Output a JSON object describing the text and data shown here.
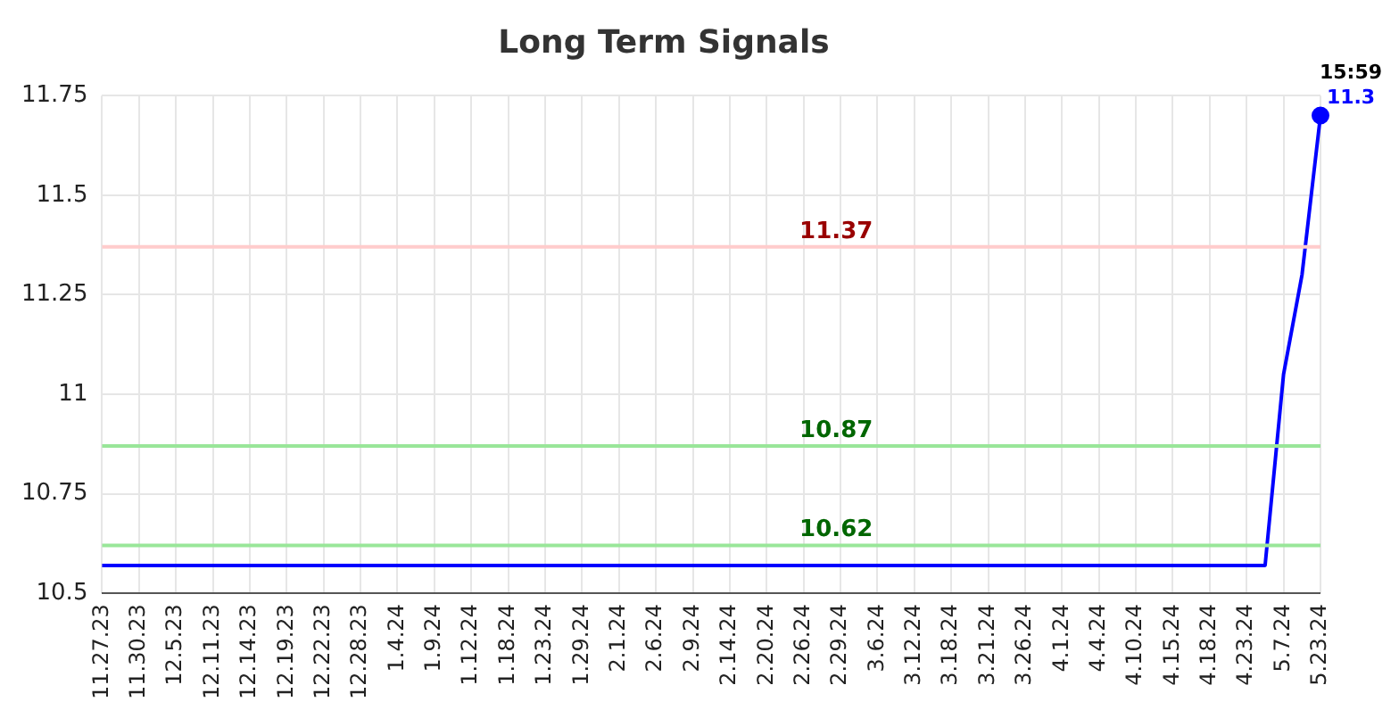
{
  "chart_data": {
    "type": "line",
    "title": "Long Term Signals",
    "categories": [
      "11.27.23",
      null,
      "11.30.23",
      null,
      "12.5.23",
      null,
      "12.11.23",
      null,
      "12.14.23",
      null,
      "12.19.23",
      null,
      "12.22.23",
      null,
      "12.28.23",
      null,
      "1.4.24",
      null,
      "1.9.24",
      null,
      "1.12.24",
      null,
      "1.18.24",
      null,
      "1.23.24",
      null,
      "1.29.24",
      null,
      "2.1.24",
      null,
      "2.6.24",
      null,
      "2.9.24",
      null,
      "2.14.24",
      null,
      "2.20.24",
      null,
      "2.26.24",
      null,
      "2.29.24",
      null,
      "3.6.24",
      null,
      "3.12.24",
      null,
      "3.18.24",
      null,
      "3.21.24",
      null,
      "3.26.24",
      null,
      "4.1.24",
      null,
      "4.4.24",
      null,
      "4.10.24",
      null,
      "4.15.24",
      null,
      "4.18.24",
      null,
      "4.23.24",
      null,
      "5.7.24",
      null,
      "5.23.24"
    ],
    "series": [
      {
        "color": "#0000ff",
        "values": [
          10.57,
          10.57,
          10.57,
          10.57,
          10.57,
          10.57,
          10.57,
          10.57,
          10.57,
          10.57,
          10.57,
          10.57,
          10.57,
          10.57,
          10.57,
          10.57,
          10.57,
          10.57,
          10.57,
          10.57,
          10.57,
          10.57,
          10.57,
          10.57,
          10.57,
          10.57,
          10.57,
          10.57,
          10.57,
          10.57,
          10.57,
          10.57,
          10.57,
          10.57,
          10.57,
          10.57,
          10.57,
          10.57,
          10.57,
          10.57,
          10.57,
          10.57,
          10.57,
          10.57,
          10.57,
          10.57,
          10.57,
          10.57,
          10.57,
          10.57,
          10.57,
          10.57,
          10.57,
          10.57,
          10.57,
          10.57,
          10.57,
          10.57,
          10.57,
          10.57,
          10.57,
          10.57,
          10.57,
          10.57,
          11.05,
          11.3,
          11.7
        ]
      }
    ],
    "ylim": [
      10.5,
      11.75
    ],
    "yticks": [
      10.5,
      10.75,
      11,
      11.25,
      11.5,
      11.75
    ],
    "grid": true,
    "legend": false,
    "marker": "none",
    "ref_lines": [
      {
        "axis": "y",
        "value": 11.37,
        "label": "11.37",
        "color": "#ffcccc"
      },
      {
        "axis": "y",
        "value": 10.87,
        "label": "10.87",
        "color": "#99e699"
      },
      {
        "axis": "y",
        "value": 10.62,
        "label": "10.62",
        "color": "#99e699"
      }
    ],
    "annotations": [
      "15:59",
      "11.3"
    ]
  }
}
